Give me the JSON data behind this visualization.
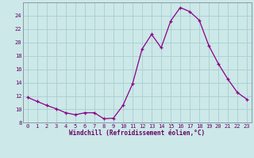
{
  "x": [
    0,
    1,
    2,
    3,
    4,
    5,
    6,
    7,
    8,
    9,
    10,
    11,
    12,
    13,
    14,
    15,
    16,
    17,
    18,
    19,
    20,
    21,
    22,
    23
  ],
  "y": [
    11.8,
    11.2,
    10.6,
    10.1,
    9.5,
    9.2,
    9.5,
    9.5,
    8.6,
    8.7,
    10.6,
    13.8,
    19.0,
    21.2,
    19.2,
    23.2,
    25.2,
    24.6,
    23.3,
    19.5,
    16.8,
    14.5,
    12.5,
    11.5
  ],
  "line_color": "#8B008B",
  "marker_color": "#8B008B",
  "bg_color": "#cce8e8",
  "grid_color": "#aacece",
  "xlabel": "Windchill (Refroidissement éolien,°C)",
  "ylim": [
    8,
    26
  ],
  "xlim": [
    -0.5,
    23.5
  ],
  "yticks": [
    8,
    10,
    12,
    14,
    16,
    18,
    20,
    22,
    24
  ],
  "xticks": [
    0,
    1,
    2,
    3,
    4,
    5,
    6,
    7,
    8,
    9,
    10,
    11,
    12,
    13,
    14,
    15,
    16,
    17,
    18,
    19,
    20,
    21,
    22,
    23
  ],
  "xlabel_fontsize": 5.5,
  "tick_fontsize": 5.0,
  "line_width": 0.9,
  "marker_size": 3.5
}
